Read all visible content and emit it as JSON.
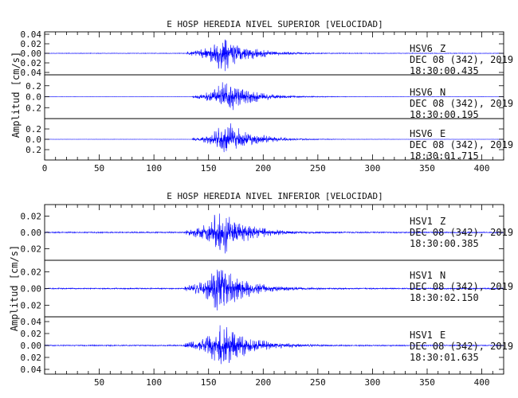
{
  "chart_data": [
    {
      "type": "line",
      "title": "E HOSP HEREDIA NIVEL SUPERIOR [VELOCIDAD]",
      "ylabel": "Amplitud [cm/s]",
      "xlim": [
        0,
        420
      ],
      "x_ticks": [
        "0",
        "50",
        "100",
        "150",
        "200",
        "250",
        "300",
        "350",
        "400"
      ],
      "line_color": "#0000ff",
      "panels": [
        {
          "station": "HSV6",
          "component": "Z",
          "date": "DEC 08 (342), 2019",
          "time": "18:30:00.435",
          "ylim": [
            -0.045,
            0.045
          ],
          "y_ticks": [
            0.04,
            0.02,
            0.0,
            -0.02,
            -0.04
          ],
          "y_tick_labels": [
            "0.04",
            "0.02",
            "0.00",
            "0.02",
            "0.04"
          ],
          "onset": 130,
          "peak_time": 163,
          "peak_amplitude": 0.042,
          "noise": 0.0006
        },
        {
          "station": "HSV6",
          "component": "N",
          "date": "DEC 08 (342), 2019",
          "time": "18:30:00.195",
          "ylim": [
            -0.4,
            0.4
          ],
          "y_ticks": [
            0.2,
            0.0,
            -0.2
          ],
          "y_tick_labels": [
            "0.2",
            "0.0",
            "0.2"
          ],
          "onset": 135,
          "peak_time": 166,
          "peak_amplitude": 0.34,
          "noise": 0.002
        },
        {
          "station": "HSV6",
          "component": "E",
          "date": "DEC 08 (342), 2019",
          "time": "18:30:01.715",
          "ylim": [
            -0.4,
            0.4
          ],
          "y_ticks": [
            0.2,
            0.0,
            -0.2
          ],
          "y_tick_labels": [
            "0.2",
            "0.0",
            "0.2"
          ],
          "onset": 135,
          "peak_time": 166,
          "peak_amplitude": 0.38,
          "noise": 0.002
        }
      ]
    },
    {
      "type": "line",
      "title": "E HOSP HEREDIA NIVEL INFERIOR [VELOCIDAD]",
      "ylabel": "Amplitud [cm/s]",
      "xlim": [
        0,
        420
      ],
      "x_ticks": [
        "50",
        "100",
        "150",
        "200",
        "250",
        "300",
        "350",
        "400"
      ],
      "line_color": "#0000ff",
      "panels": [
        {
          "station": "HSV1",
          "component": "Z",
          "date": "DEC 08 (342), 2019",
          "time": "18:30:00.385",
          "ylim": [
            -0.034,
            0.034
          ],
          "y_ticks": [
            0.02,
            0.0,
            -0.02
          ],
          "y_tick_labels": [
            "0.02",
            "0.00",
            "0.02"
          ],
          "onset": 128,
          "peak_time": 160,
          "peak_amplitude": 0.032,
          "noise": 0.0008
        },
        {
          "station": "HSV1",
          "component": "N",
          "date": "DEC 08 (342), 2019",
          "time": "18:30:02.150",
          "ylim": [
            -0.034,
            0.034
          ],
          "y_ticks": [
            0.02,
            0.0,
            -0.02
          ],
          "y_tick_labels": [
            "0.02",
            "0.00",
            "0.02"
          ],
          "onset": 128,
          "peak_time": 160,
          "peak_amplitude": 0.032,
          "noise": 0.0008
        },
        {
          "station": "HSV1",
          "component": "E",
          "date": "DEC 08 (342), 2019",
          "time": "18:30:01.635",
          "ylim": [
            -0.048,
            0.048
          ],
          "y_ticks": [
            0.04,
            0.02,
            0.0,
            -0.02,
            -0.04
          ],
          "y_tick_labels": [
            "0.04",
            "0.02",
            "0.00",
            "0.02",
            "0.04"
          ],
          "onset": 128,
          "peak_time": 162,
          "peak_amplitude": 0.044,
          "noise": 0.001
        }
      ]
    }
  ]
}
